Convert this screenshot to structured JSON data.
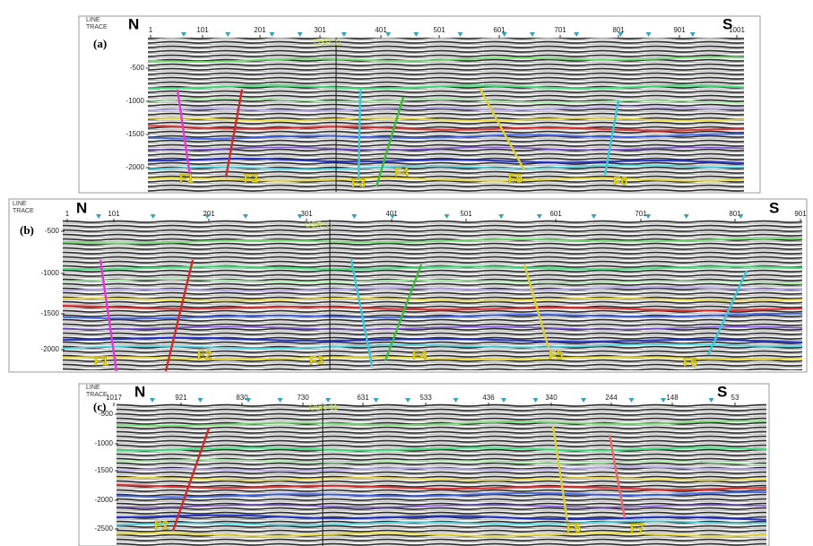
{
  "panels": [
    {
      "label": "(a)",
      "line_label": "LINE",
      "trace_label": "TRACE",
      "north": "N",
      "south": "S",
      "well": "OSR-11",
      "traces": [
        1,
        101,
        201,
        301,
        401,
        501,
        601,
        701,
        801,
        901,
        1001
      ],
      "depths": [
        -500,
        -1000,
        -1500,
        -2000
      ],
      "faults": [
        "F1",
        "F2",
        "F3",
        "F4",
        "F5",
        "F6"
      ]
    },
    {
      "label": "(b)",
      "line_label": "LINE",
      "trace_label": "TRACE",
      "north": "N",
      "south": "S",
      "well": "OSR-11",
      "traces": [
        1,
        101,
        201,
        301,
        401,
        501,
        601,
        701,
        801,
        901
      ],
      "depths": [
        -500,
        -1000,
        -1500,
        -2000
      ],
      "faults": [
        "F1",
        "F2",
        "F3",
        "F4",
        "F5",
        "F6"
      ]
    },
    {
      "label": "(c)",
      "line_label": "LINE",
      "trace_label": "TRACE",
      "north": "N",
      "south": "S",
      "well": "OSR-11",
      "traces": [
        1017,
        921,
        830,
        730,
        631,
        533,
        436,
        340,
        244,
        148,
        53
      ],
      "depths": [
        -500,
        -1000,
        -1500,
        -2000,
        -2500
      ],
      "faults": [
        "F2",
        "F5",
        "F7"
      ]
    }
  ]
}
